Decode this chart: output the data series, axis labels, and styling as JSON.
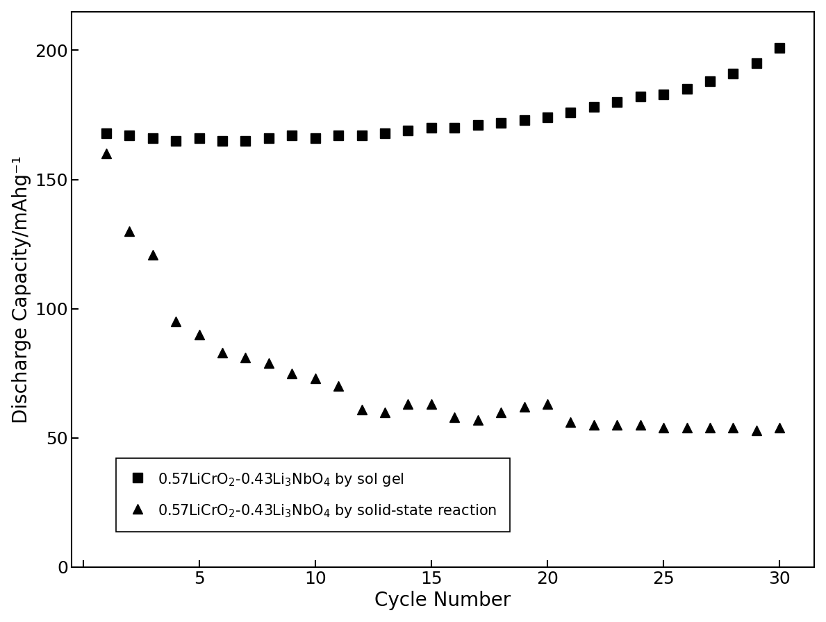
{
  "sol_gel_x": [
    1,
    2,
    3,
    4,
    5,
    6,
    7,
    8,
    9,
    10,
    11,
    12,
    13,
    14,
    15,
    16,
    17,
    18,
    19,
    20,
    21,
    22,
    23,
    24,
    25,
    26,
    27,
    28,
    29,
    30
  ],
  "sol_gel_y": [
    168,
    167,
    166,
    165,
    166,
    165,
    165,
    166,
    167,
    166,
    167,
    167,
    168,
    169,
    170,
    170,
    171,
    172,
    173,
    174,
    176,
    178,
    180,
    182,
    183,
    185,
    188,
    191,
    195,
    201
  ],
  "solid_state_x": [
    1,
    2,
    3,
    4,
    5,
    6,
    7,
    8,
    9,
    10,
    11,
    12,
    13,
    14,
    15,
    16,
    17,
    18,
    19,
    20,
    21,
    22,
    23,
    24,
    25,
    26,
    27,
    28,
    29,
    30
  ],
  "solid_state_y": [
    160,
    130,
    121,
    95,
    90,
    83,
    81,
    79,
    75,
    73,
    70,
    61,
    60,
    63,
    63,
    58,
    57,
    60,
    62,
    63,
    56,
    55,
    55,
    55,
    54,
    54,
    54,
    54,
    53,
    54
  ],
  "xlabel": "Cycle Number",
  "ylabel": "Discharge Capacity/mAhg⁻¹",
  "ylim": [
    0,
    215
  ],
  "xlim": [
    -0.5,
    31.5
  ],
  "yticks": [
    0,
    50,
    100,
    150,
    200
  ],
  "xticks": [
    0,
    5,
    10,
    15,
    20,
    25,
    30
  ],
  "xtick_labels": [
    "",
    "5",
    "10",
    "15",
    "20",
    "25",
    "30"
  ],
  "legend_label_sol": "0.57LiCrO$_2$-0.43Li$_3$NbO$_4$ by sol gel",
  "legend_label_solid": "0.57LiCrO$_2$-0.43Li$_3$NbO$_4$ by solid-state reaction",
  "marker_color": "#000000",
  "background_color": "#ffffff",
  "marker_size": 10,
  "fontsize_label": 20,
  "fontsize_tick": 18,
  "fontsize_legend": 15
}
